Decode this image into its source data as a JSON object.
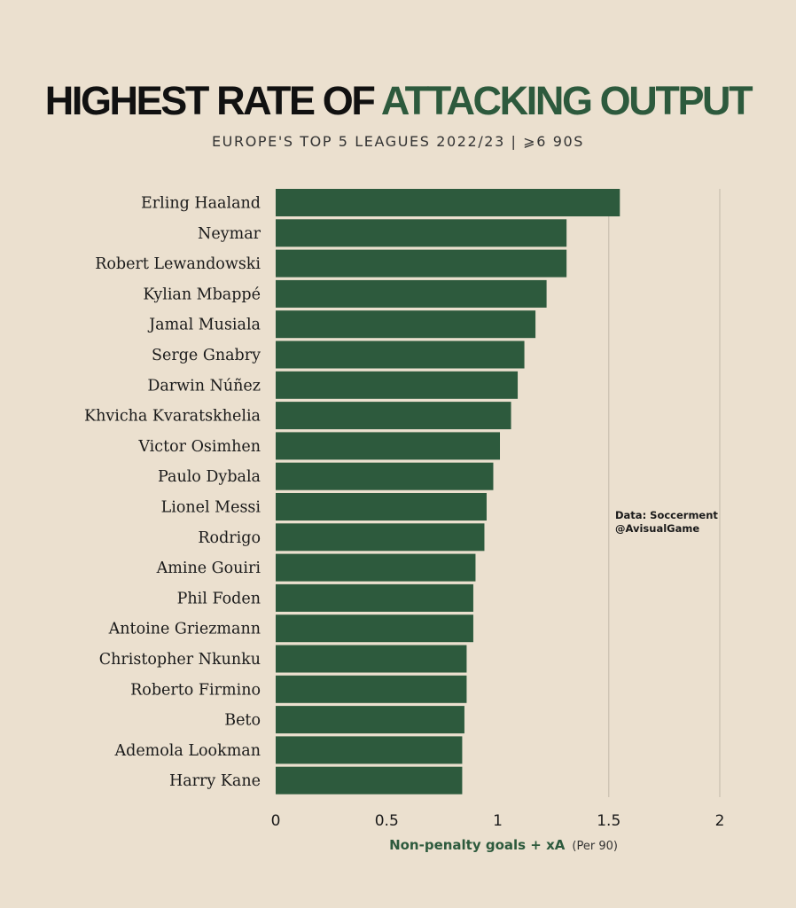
{
  "title": {
    "part1": "HIGHEST RATE OF ",
    "part2": "ATTACKING OUTPUT"
  },
  "subtitle": "EUROPE'S TOP 5 LEAGUES 2022/23  |  ⩾6 90S",
  "credit": {
    "line1": "Data: Soccerment",
    "line2": "@AvisualGame"
  },
  "colors": {
    "bar": "#2d5a3d",
    "background": "#ebe0cf",
    "grid": "#c9bfb0",
    "accent": "#2d5a3d"
  },
  "chart_data": {
    "type": "bar",
    "orientation": "horizontal",
    "categories": [
      "Erling Haaland",
      "Neymar",
      "Robert Lewandowski",
      "Kylian Mbappé",
      "Jamal Musiala",
      "Serge Gnabry",
      "Darwin Núñez",
      "Khvicha Kvaratskhelia",
      "Victor Osimhen",
      "Paulo Dybala",
      "Lionel Messi",
      "Rodrigo",
      "Amine Gouiri",
      "Phil Foden",
      "Antoine Griezmann",
      "Christopher Nkunku",
      "Roberto Firmino",
      "Beto",
      "Ademola Lookman",
      "Harry Kane"
    ],
    "values": [
      1.55,
      1.31,
      1.31,
      1.22,
      1.17,
      1.12,
      1.09,
      1.06,
      1.01,
      0.98,
      0.95,
      0.94,
      0.9,
      0.89,
      0.89,
      0.86,
      0.86,
      0.85,
      0.84,
      0.84
    ],
    "xlim": [
      0,
      2
    ],
    "xticks": [
      0,
      0.5,
      1,
      1.5,
      2
    ],
    "xtick_labels": [
      "0",
      "0.5",
      "1",
      "1.5",
      "2"
    ],
    "xlabel": "Non-penalty goals + xA",
    "xlabel_unit": "(Per 90)",
    "grid": "vertical at 1.5 and 2"
  }
}
